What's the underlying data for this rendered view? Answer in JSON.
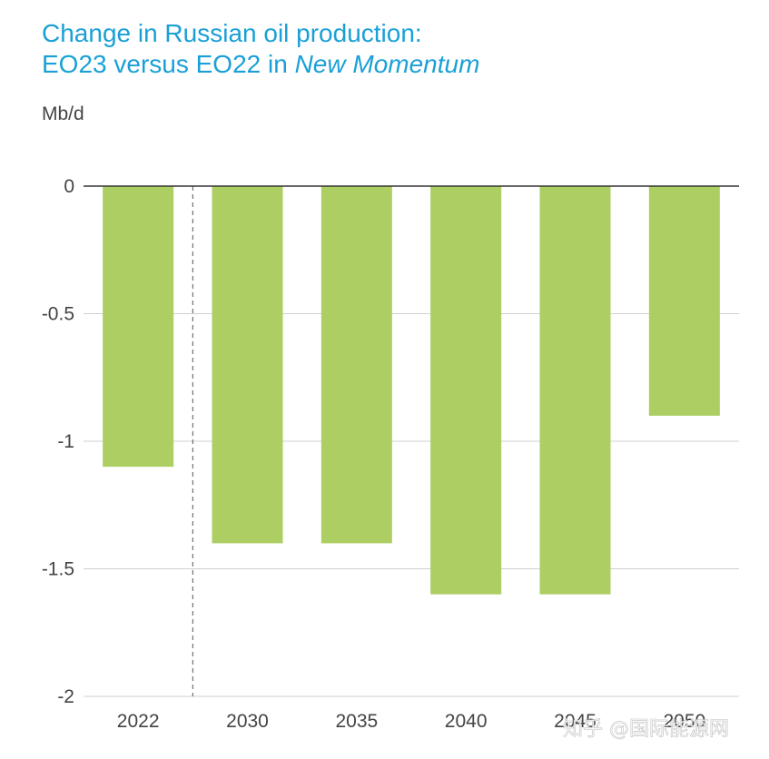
{
  "chart_data": {
    "type": "bar",
    "title_line1": "Change in Russian oil production:",
    "title_line2_prefix": "EO23 versus EO22 in ",
    "title_line2_italic": "New Momentum",
    "ylabel": "Mb/d",
    "categories": [
      "2022",
      "2030",
      "2035",
      "2040",
      "2045",
      "2050"
    ],
    "values": [
      -1.1,
      -1.4,
      -1.4,
      -1.6,
      -1.6,
      -0.9
    ],
    "ylim": [
      -2,
      0
    ],
    "yticks": [
      0,
      -0.5,
      -1,
      -1.5,
      -2
    ],
    "ytick_labels": [
      "0",
      "-0.5",
      "-1",
      "-1.5",
      "-2"
    ],
    "grid": true,
    "bar_color": "#acce62",
    "divider_after_category": "2022"
  },
  "watermark": "知乎 @国际能源网"
}
